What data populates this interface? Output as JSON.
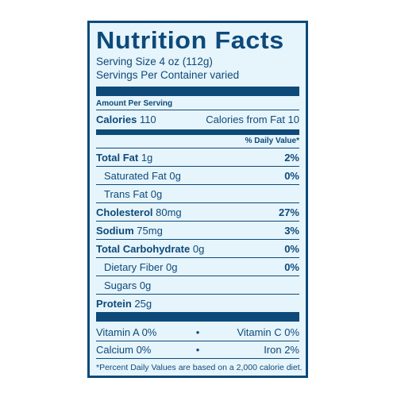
{
  "label": {
    "title": "Nutrition Facts",
    "serving_size": "Serving Size 4 oz (112g)",
    "servings_per_container": "Servings Per Container varied",
    "amount_per_serving": "Amount Per Serving",
    "calories_label": "Calories",
    "calories_value": "110",
    "calories_from_fat": "Calories from Fat 10",
    "daily_value_header": "% Daily Value*",
    "nutrients": [
      {
        "name": "Total Fat",
        "amount": "1g",
        "dv": "2%"
      },
      {
        "name": "Saturated Fat",
        "amount": "0g",
        "dv": "0%"
      },
      {
        "name": "Trans Fat",
        "amount": "0g",
        "dv": ""
      },
      {
        "name": "Cholesterol",
        "amount": "80mg",
        "dv": "27%"
      },
      {
        "name": "Sodium",
        "amount": "75mg",
        "dv": "3%"
      },
      {
        "name": "Total Carbohydrate",
        "amount": "0g",
        "dv": "0%"
      },
      {
        "name": "Dietary Fiber",
        "amount": "0g",
        "dv": "0%"
      },
      {
        "name": "Sugars",
        "amount": "0g",
        "dv": ""
      },
      {
        "name": "Protein",
        "amount": "25g",
        "dv": ""
      }
    ],
    "vitamins": [
      {
        "left": "Vitamin A 0%",
        "right": "Vitamin C 0%"
      },
      {
        "left": "Calcium 0%",
        "right": "Iron 2%"
      }
    ],
    "separator": "•",
    "footnote": "*Percent Daily Values are based on a 2,000 calorie diet.",
    "colors": {
      "ink": "#0d4a7a",
      "background": "#e6f4fb"
    }
  }
}
